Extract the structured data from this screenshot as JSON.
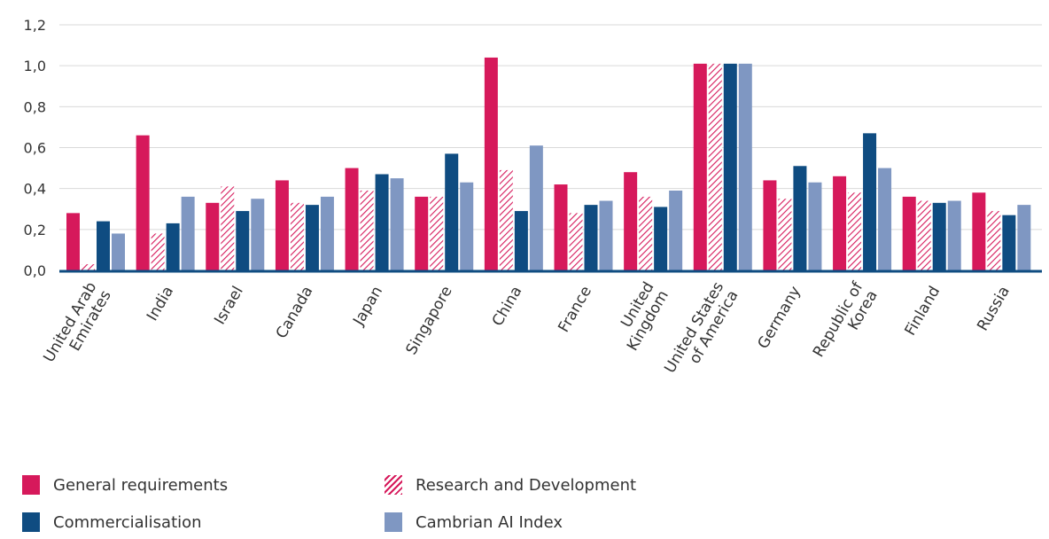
{
  "chart_data": {
    "type": "bar",
    "categories": [
      "United Arab Emirates",
      "India",
      "Israel",
      "Canada",
      "Japan",
      "Singapore",
      "China",
      "France",
      "United Kingdom",
      "United States of America",
      "Germany",
      "Republic of Korea",
      "Finland",
      "Russia"
    ],
    "category_lines": [
      [
        "United Arab",
        "Emirates"
      ],
      [
        "India"
      ],
      [
        "Israel"
      ],
      [
        "Canada"
      ],
      [
        "Japan"
      ],
      [
        "Singapore"
      ],
      [
        "China"
      ],
      [
        "France"
      ],
      [
        "United",
        "Kingdom"
      ],
      [
        "United States",
        "of America"
      ],
      [
        "Germany"
      ],
      [
        "Republic of",
        "Korea"
      ],
      [
        "Finland"
      ],
      [
        "Russia"
      ]
    ],
    "series": [
      {
        "name": "General requirements",
        "color": "#d6195b",
        "pattern": "solid",
        "values": [
          0.28,
          0.66,
          0.33,
          0.44,
          0.5,
          0.36,
          1.04,
          0.42,
          0.48,
          1.01,
          0.44,
          0.46,
          0.36,
          0.38
        ]
      },
      {
        "name": "Research and Development",
        "color": "#d6195b",
        "pattern": "hatched",
        "values": [
          0.03,
          0.18,
          0.41,
          0.33,
          0.39,
          0.36,
          0.49,
          0.28,
          0.36,
          1.01,
          0.35,
          0.38,
          0.34,
          0.29
        ]
      },
      {
        "name": "Commercialisation",
        "color": "#0f4c81",
        "pattern": "solid",
        "values": [
          0.24,
          0.23,
          0.29,
          0.32,
          0.47,
          0.57,
          0.29,
          0.32,
          0.31,
          1.01,
          0.51,
          0.67,
          0.33,
          0.27
        ]
      },
      {
        "name": "Cambrian AI Index",
        "color": "#7f97c2",
        "pattern": "solid",
        "values": [
          0.18,
          0.36,
          0.35,
          0.36,
          0.45,
          0.43,
          0.61,
          0.34,
          0.39,
          1.01,
          0.43,
          0.5,
          0.34,
          0.32
        ]
      }
    ],
    "y_ticks": [
      "0,0",
      "0,2",
      "0,4",
      "0,6",
      "0,8",
      "1,0",
      "1,2"
    ],
    "ylim": [
      0,
      1.2
    ],
    "grid": true,
    "legend_position": "bottom",
    "title": "",
    "xlabel": "",
    "ylabel": ""
  },
  "legend": {
    "general_requirements": "General requirements",
    "research_development": "Research and Development",
    "commercialisation": "Commercialisation",
    "cambrian_index": "Cambrian AI Index"
  }
}
